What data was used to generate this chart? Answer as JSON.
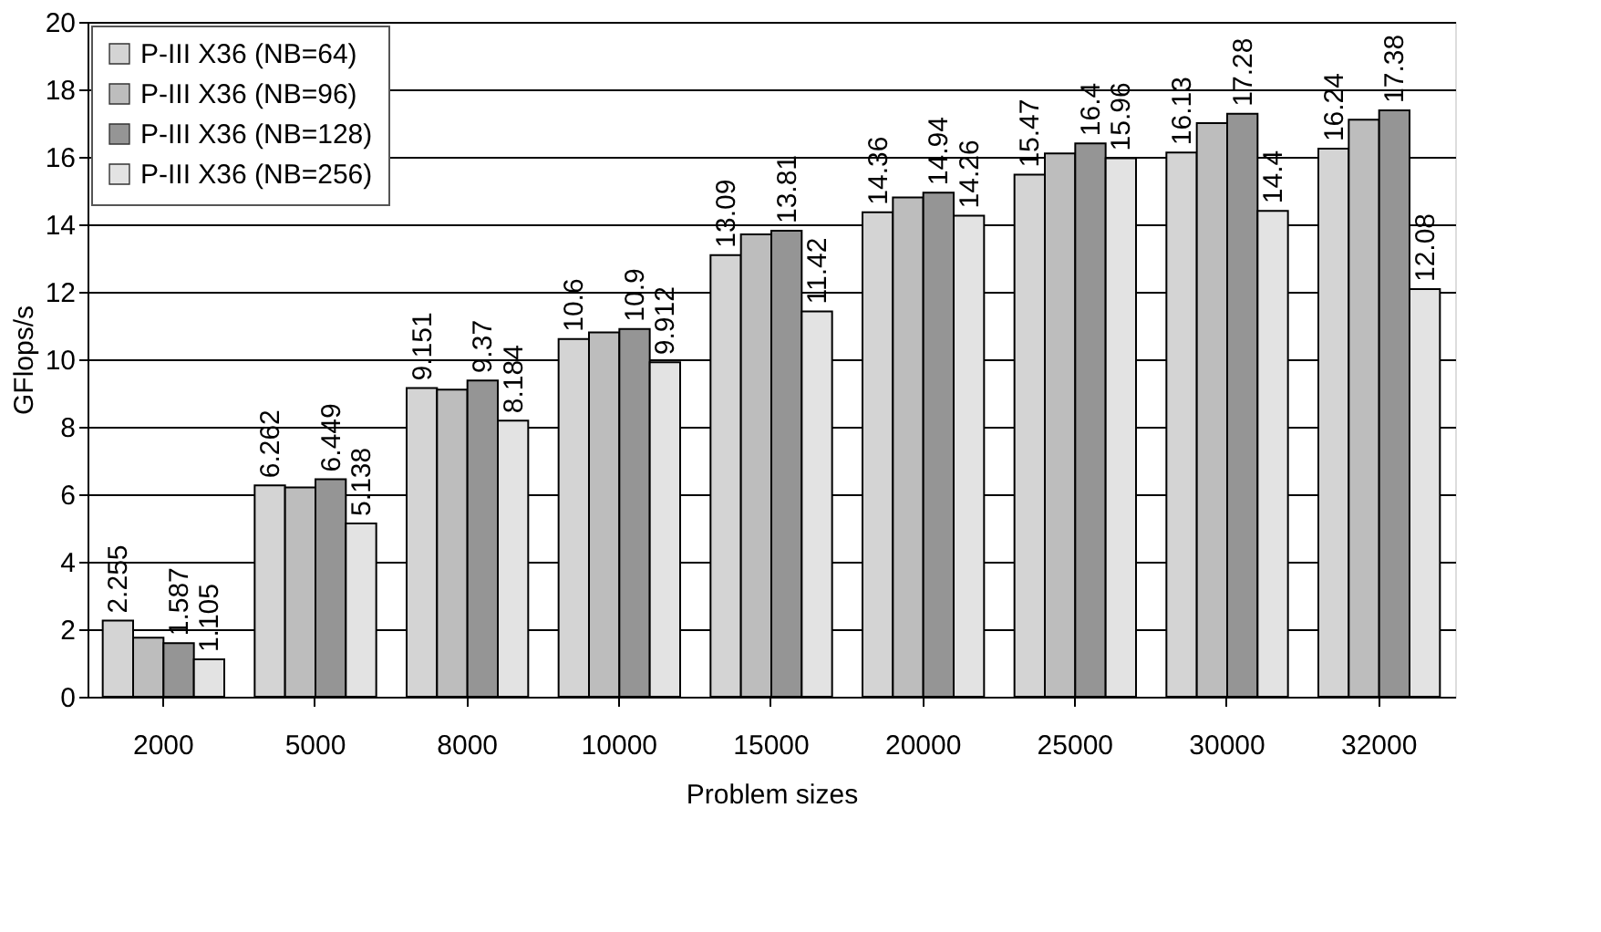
{
  "chart_data": {
    "type": "bar",
    "xlabel": "Problem sizes",
    "ylabel": "GFlops/s",
    "categories": [
      "2000",
      "5000",
      "8000",
      "10000",
      "15000",
      "20000",
      "25000",
      "30000",
      "32000"
    ],
    "series": [
      {
        "name": "P-III X36 (NB=64)",
        "color": "#d4d4d4",
        "values": [
          2.255,
          6.262,
          9.151,
          10.6,
          13.09,
          14.36,
          15.47,
          16.13,
          16.24
        ],
        "value_labels": [
          "2.255",
          "6.262",
          "9.151",
          "10.6",
          "13.09",
          "14.36",
          "15.47",
          "16.13",
          "16.24"
        ]
      },
      {
        "name": "P-III X36 (NB=96)",
        "color": "#bdbdbd",
        "values": [
          1.75,
          6.2,
          9.1,
          10.8,
          13.7,
          14.8,
          16.1,
          17.0,
          17.1
        ]
      },
      {
        "name": "P-III X36 (NB=128)",
        "color": "#959595",
        "values": [
          1.587,
          6.449,
          9.37,
          10.9,
          13.81,
          14.94,
          16.4,
          17.28,
          17.38
        ],
        "value_labels": [
          "1.587",
          "6.449",
          "9.37",
          "10.9",
          "13.81",
          "14.94",
          "16.4",
          "17.28",
          "17.38"
        ]
      },
      {
        "name": "P-III X36 (NB=256)",
        "color": "#e3e3e3",
        "values": [
          1.105,
          5.138,
          8.184,
          9.912,
          11.42,
          14.26,
          15.96,
          14.4,
          12.08
        ],
        "value_labels": [
          "1.105",
          "5.138",
          "8.184",
          "9.912",
          "11.42",
          "14.26",
          "15.96",
          "14.4",
          "12.08"
        ]
      }
    ],
    "ylim": [
      0,
      20
    ],
    "yticks": [
      0,
      2,
      4,
      6,
      8,
      10,
      12,
      14,
      16,
      18,
      20
    ],
    "grid": "y",
    "legend": "top left"
  }
}
